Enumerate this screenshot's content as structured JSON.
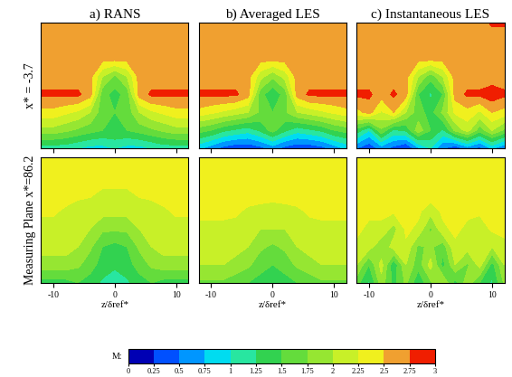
{
  "chart_data": {
    "type": "contour",
    "column_titles": [
      "a) RANS",
      "b) Averaged LES",
      "c) Instantaneous LES"
    ],
    "row_titles": [
      "x* = -3.7",
      "Measuring Plane x*=86.2"
    ],
    "xlabel": "z/δref*",
    "x": [
      -12,
      -10,
      -8,
      -6,
      -4,
      -2,
      0,
      2,
      4,
      6,
      8,
      10,
      12
    ],
    "xlim": [
      -12,
      12
    ],
    "xticks": [
      -10,
      0,
      10
    ],
    "tick_labels": "x",
    "colorbar_label": "M:",
    "levels": [
      0,
      0.25,
      0.5,
      0.75,
      1,
      1.25,
      1.5,
      1.75,
      2,
      2.25,
      2.5,
      2.75,
      3
    ],
    "colors": [
      "#0000b4",
      "#0050ff",
      "#0096ff",
      "#00dcf0",
      "#28e6a0",
      "#32d250",
      "#64dc3c",
      "#96e632",
      "#c8f028",
      "#f0f01e",
      "#f0a030",
      "#f01e00"
    ],
    "panels": [
      [
        [
          [
            1.1,
            1.1,
            1.1,
            1.0,
            0.9,
            0.9,
            1.0,
            0.9,
            0.9,
            1.0,
            1.1,
            1.1,
            1.1
          ],
          [
            1.9,
            1.9,
            1.8,
            1.7,
            1.6,
            1.5,
            1.5,
            1.5,
            1.6,
            1.7,
            1.8,
            1.9,
            1.9
          ],
          [
            2.4,
            2.4,
            2.3,
            2.2,
            2.0,
            1.6,
            1.5,
            1.6,
            2.0,
            2.2,
            2.3,
            2.4,
            2.4
          ],
          [
            2.8,
            2.8,
            2.8,
            2.8,
            2.6,
            1.6,
            1.4,
            1.6,
            2.6,
            2.8,
            2.8,
            2.8,
            2.8
          ],
          [
            2.6,
            2.6,
            2.6,
            2.6,
            2.6,
            2.0,
            1.7,
            2.0,
            2.6,
            2.6,
            2.6,
            2.6,
            2.6
          ],
          [
            2.6,
            2.6,
            2.6,
            2.6,
            2.6,
            2.6,
            2.6,
            2.6,
            2.6,
            2.6,
            2.6,
            2.6,
            2.6
          ],
          [
            2.6,
            2.6,
            2.6,
            2.6,
            2.6,
            2.6,
            2.6,
            2.6,
            2.6,
            2.6,
            2.6,
            2.6,
            2.6
          ],
          [
            2.6,
            2.6,
            2.6,
            2.6,
            2.6,
            2.6,
            2.6,
            2.6,
            2.6,
            2.6,
            2.6,
            2.6,
            2.6
          ]
        ],
        [
          [
            0.8,
            0.6,
            0.4,
            0.3,
            0.3,
            0.4,
            0.6,
            0.4,
            0.3,
            0.3,
            0.4,
            0.6,
            0.8
          ],
          [
            1.6,
            1.5,
            1.3,
            1.2,
            1.1,
            1.3,
            1.6,
            1.3,
            1.1,
            1.2,
            1.3,
            1.5,
            1.6
          ],
          [
            2.4,
            2.3,
            2.2,
            2.1,
            2.0,
            1.7,
            1.5,
            1.7,
            2.0,
            2.1,
            2.2,
            2.3,
            2.4
          ],
          [
            2.8,
            2.8,
            2.8,
            2.8,
            2.6,
            1.6,
            1.3,
            1.6,
            2.6,
            2.8,
            2.8,
            2.8,
            2.8
          ],
          [
            2.6,
            2.6,
            2.6,
            2.6,
            2.6,
            2.1,
            1.8,
            2.1,
            2.6,
            2.6,
            2.6,
            2.6,
            2.6
          ],
          [
            2.6,
            2.6,
            2.6,
            2.6,
            2.6,
            2.6,
            2.6,
            2.6,
            2.6,
            2.6,
            2.6,
            2.6,
            2.6
          ],
          [
            2.6,
            2.6,
            2.6,
            2.6,
            2.6,
            2.6,
            2.6,
            2.6,
            2.6,
            2.6,
            2.6,
            2.6,
            2.6
          ],
          [
            2.6,
            2.6,
            2.6,
            2.6,
            2.6,
            2.6,
            2.6,
            2.6,
            2.6,
            2.6,
            2.6,
            2.6,
            2.6
          ]
        ],
        [
          [
            0.5,
            0.3,
            0.6,
            0.4,
            0.2,
            0.7,
            1.0,
            0.5,
            0.3,
            0.6,
            0.4,
            0.8,
            0.5
          ],
          [
            1.4,
            1.0,
            1.7,
            1.2,
            1.3,
            1.9,
            1.5,
            1.2,
            1.8,
            2.1,
            1.6,
            2.0,
            1.7
          ],
          [
            2.4,
            2.6,
            2.2,
            2.5,
            2.0,
            1.6,
            1.4,
            1.8,
            2.3,
            2.4,
            2.2,
            2.5,
            2.4
          ],
          [
            2.8,
            2.8,
            2.6,
            2.8,
            2.6,
            1.5,
            1.2,
            1.5,
            2.6,
            2.8,
            2.8,
            2.9,
            2.8
          ],
          [
            2.6,
            2.6,
            2.6,
            2.6,
            2.6,
            2.0,
            1.6,
            2.0,
            2.6,
            2.6,
            2.6,
            2.6,
            2.6
          ],
          [
            2.6,
            2.6,
            2.6,
            2.6,
            2.6,
            2.6,
            2.6,
            2.6,
            2.6,
            2.6,
            2.6,
            2.6,
            2.6
          ],
          [
            2.6,
            2.6,
            2.6,
            2.6,
            2.6,
            2.6,
            2.6,
            2.6,
            2.6,
            2.6,
            2.6,
            2.6,
            2.6
          ],
          [
            2.6,
            2.6,
            2.6,
            2.6,
            2.6,
            2.6,
            2.6,
            2.6,
            2.6,
            2.6,
            2.6,
            2.8,
            2.8
          ]
        ]
      ],
      [
        [
          [
            1.4,
            1.4,
            1.4,
            1.5,
            1.4,
            1.2,
            1.1,
            1.2,
            1.4,
            1.5,
            1.4,
            1.4,
            1.4
          ],
          [
            1.9,
            1.9,
            1.9,
            1.8,
            1.6,
            1.4,
            1.3,
            1.4,
            1.6,
            1.8,
            1.9,
            1.9,
            1.9
          ],
          [
            2.1,
            2.1,
            2.1,
            2.0,
            1.8,
            1.5,
            1.4,
            1.5,
            1.8,
            2.0,
            2.1,
            2.1,
            2.1
          ],
          [
            2.15,
            2.15,
            2.15,
            2.15,
            2.0,
            1.8,
            1.8,
            1.8,
            2.0,
            2.15,
            2.15,
            2.15,
            2.15
          ],
          [
            2.3,
            2.3,
            2.2,
            2.1,
            2.1,
            2.1,
            2.1,
            2.1,
            2.1,
            2.1,
            2.2,
            2.3,
            2.3
          ],
          [
            2.4,
            2.4,
            2.4,
            2.35,
            2.3,
            2.2,
            2.2,
            2.2,
            2.3,
            2.35,
            2.4,
            2.4,
            2.4
          ],
          [
            2.4,
            2.4,
            2.4,
            2.4,
            2.4,
            2.4,
            2.4,
            2.4,
            2.4,
            2.4,
            2.4,
            2.4,
            2.4
          ],
          [
            2.4,
            2.4,
            2.4,
            2.4,
            2.4,
            2.4,
            2.4,
            2.4,
            2.4,
            2.4,
            2.4,
            2.4,
            2.4
          ]
        ],
        [
          [
            1.7,
            1.7,
            1.7,
            1.6,
            1.5,
            1.4,
            1.3,
            1.4,
            1.5,
            1.6,
            1.7,
            1.7,
            1.7
          ],
          [
            2.0,
            2.0,
            2.0,
            1.9,
            1.8,
            1.6,
            1.5,
            1.6,
            1.8,
            1.9,
            2.0,
            2.0,
            2.0
          ],
          [
            2.1,
            2.1,
            2.1,
            2.1,
            2.0,
            1.8,
            1.7,
            1.8,
            2.0,
            2.1,
            2.1,
            2.1,
            2.1
          ],
          [
            2.2,
            2.2,
            2.2,
            2.15,
            2.1,
            2.0,
            2.0,
            2.0,
            2.1,
            2.15,
            2.2,
            2.2,
            2.2
          ],
          [
            2.3,
            2.3,
            2.3,
            2.3,
            2.2,
            2.15,
            2.1,
            2.15,
            2.2,
            2.3,
            2.3,
            2.3,
            2.3
          ],
          [
            2.4,
            2.4,
            2.4,
            2.4,
            2.4,
            2.4,
            2.4,
            2.4,
            2.4,
            2.4,
            2.4,
            2.4,
            2.4
          ],
          [
            2.4,
            2.4,
            2.4,
            2.4,
            2.4,
            2.4,
            2.4,
            2.4,
            2.4,
            2.4,
            2.4,
            2.4,
            2.4
          ],
          [
            2.4,
            2.4,
            2.4,
            2.4,
            2.4,
            2.4,
            2.4,
            2.4,
            2.4,
            2.4,
            2.4,
            2.4,
            2.4
          ]
        ],
        [
          [
            1.6,
            1.2,
            1.9,
            1.4,
            1.8,
            1.3,
            1.7,
            2.0,
            1.4,
            1.9,
            1.5,
            1.2,
            1.8
          ],
          [
            2.0,
            1.5,
            2.1,
            1.3,
            2.0,
            1.6,
            2.1,
            1.4,
            2.0,
            1.7,
            2.1,
            1.4,
            2.0
          ],
          [
            2.2,
            2.1,
            1.8,
            2.1,
            2.2,
            1.7,
            1.8,
            1.6,
            2.2,
            2.1,
            2.2,
            2.0,
            2.2
          ],
          [
            2.3,
            2.2,
            2.2,
            1.9,
            2.3,
            2.2,
            1.7,
            2.2,
            2.3,
            2.2,
            2.1,
            2.3,
            2.3
          ],
          [
            2.4,
            2.3,
            2.3,
            2.3,
            2.4,
            2.3,
            2.1,
            2.3,
            2.4,
            2.3,
            2.3,
            2.4,
            2.4
          ],
          [
            2.4,
            2.4,
            2.4,
            2.4,
            2.4,
            2.4,
            2.4,
            2.4,
            2.4,
            2.4,
            2.4,
            2.4,
            2.4
          ],
          [
            2.4,
            2.4,
            2.4,
            2.4,
            2.4,
            2.4,
            2.4,
            2.4,
            2.4,
            2.4,
            2.4,
            2.4,
            2.4
          ],
          [
            2.4,
            2.4,
            2.4,
            2.4,
            2.4,
            2.4,
            2.4,
            2.4,
            2.4,
            2.4,
            2.4,
            2.4,
            2.4
          ]
        ]
      ]
    ]
  }
}
